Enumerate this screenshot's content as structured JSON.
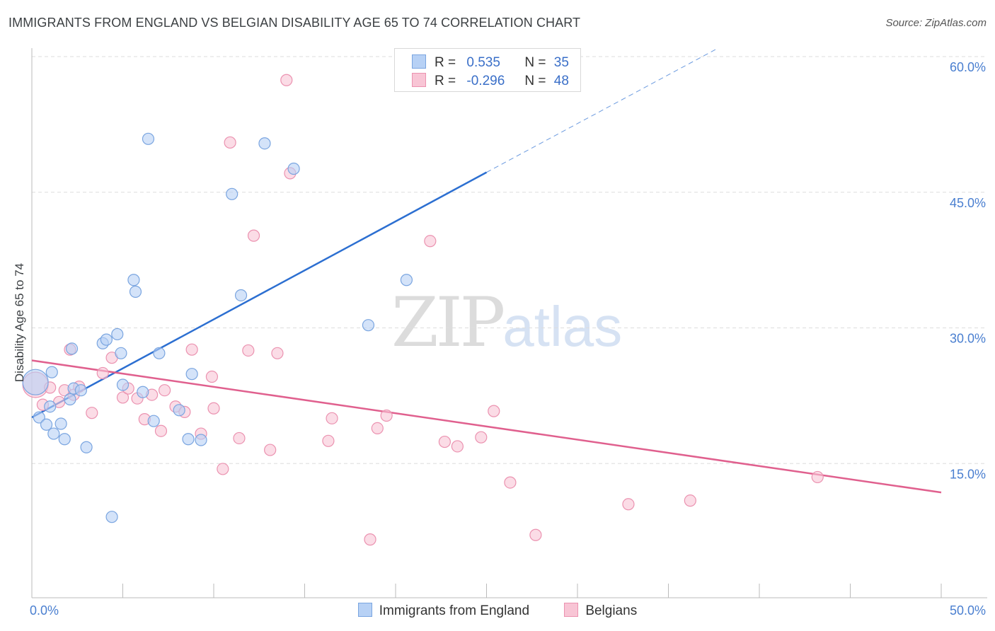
{
  "title": "IMMIGRANTS FROM ENGLAND VS BELGIAN DISABILITY AGE 65 TO 74 CORRELATION CHART",
  "source": "Source: ZipAtlas.com",
  "watermark": {
    "zip": "ZIP",
    "atlas": "atlas"
  },
  "legend_top": [
    {
      "r_label": "R =",
      "r_value": "0.535",
      "n_label": "N =",
      "n_value": "35"
    },
    {
      "r_label": "R =",
      "r_value": "-0.296",
      "n_label": "N =",
      "n_value": "48"
    }
  ],
  "legend_bottom": [
    "Immigrants from England",
    "Belgians"
  ],
  "colors": {
    "england_fill": "#b7d1f5",
    "england_stroke": "#7aa5e0",
    "england_line": "#2c6fd1",
    "belgian_fill": "#f8c5d5",
    "belgian_stroke": "#eb92b0",
    "belgian_line": "#e0608e",
    "grid": "#dddddd",
    "axis": "#bbbbbb",
    "tick_text": "#4a7fd0"
  },
  "chart_data": {
    "type": "scatter",
    "title": "IMMIGRANTS FROM ENGLAND VS BELGIAN DISABILITY AGE 65 TO 74 CORRELATION CHART",
    "xlabel": "",
    "ylabel": "Disability Age 65 to 74",
    "xlim": [
      0,
      50
    ],
    "ylim": [
      0,
      60
    ],
    "x_tick_labels": [
      "0.0%",
      "50.0%"
    ],
    "y_ticks": [
      15,
      30,
      45,
      60
    ],
    "y_tick_labels": [
      "15.0%",
      "30.0%",
      "45.0%",
      "60.0%"
    ],
    "grid": true,
    "legend": "top-center",
    "series": [
      {
        "name": "Immigrants from England",
        "R": 0.535,
        "N": 35,
        "trend": {
          "x": [
            0,
            25
          ],
          "y": [
            20.1,
            47.2
          ],
          "dashed_to": [
            37.7,
            60.9
          ]
        },
        "points": [
          [
            0.2,
            24.0
          ],
          [
            0.4,
            20.1
          ],
          [
            0.8,
            19.3
          ],
          [
            1.0,
            21.3
          ],
          [
            1.1,
            25.1
          ],
          [
            1.2,
            18.3
          ],
          [
            1.6,
            19.4
          ],
          [
            1.8,
            17.7
          ],
          [
            2.1,
            22.1
          ],
          [
            2.2,
            27.7
          ],
          [
            2.3,
            23.3
          ],
          [
            2.7,
            23.1
          ],
          [
            3.0,
            16.8
          ],
          [
            3.9,
            28.3
          ],
          [
            4.1,
            28.7
          ],
          [
            4.7,
            29.3
          ],
          [
            4.9,
            27.2
          ],
          [
            5.0,
            23.7
          ],
          [
            5.6,
            35.3
          ],
          [
            5.7,
            34.0
          ],
          [
            6.1,
            22.9
          ],
          [
            6.4,
            50.9
          ],
          [
            6.7,
            19.7
          ],
          [
            7.0,
            27.2
          ],
          [
            8.1,
            20.9
          ],
          [
            8.6,
            17.7
          ],
          [
            8.8,
            24.9
          ],
          [
            9.3,
            17.6
          ],
          [
            11.0,
            44.8
          ],
          [
            11.5,
            33.6
          ],
          [
            12.8,
            50.4
          ],
          [
            14.4,
            47.6
          ],
          [
            18.5,
            30.3
          ],
          [
            20.6,
            35.3
          ],
          [
            4.4,
            9.1
          ]
        ]
      },
      {
        "name": "Belgians",
        "R": -0.296,
        "N": 48,
        "trend": {
          "x": [
            0,
            50
          ],
          "y": [
            26.4,
            11.8
          ]
        },
        "points": [
          [
            0.2,
            23.7
          ],
          [
            0.6,
            21.5
          ],
          [
            1.0,
            23.4
          ],
          [
            1.5,
            21.8
          ],
          [
            1.8,
            23.1
          ],
          [
            2.1,
            27.6
          ],
          [
            2.3,
            22.6
          ],
          [
            2.6,
            23.5
          ],
          [
            3.3,
            20.6
          ],
          [
            3.9,
            25.0
          ],
          [
            4.4,
            26.7
          ],
          [
            5.0,
            22.3
          ],
          [
            5.3,
            23.3
          ],
          [
            5.8,
            22.2
          ],
          [
            6.2,
            19.9
          ],
          [
            6.6,
            22.6
          ],
          [
            7.1,
            18.6
          ],
          [
            7.3,
            23.1
          ],
          [
            7.9,
            21.3
          ],
          [
            8.4,
            20.7
          ],
          [
            8.8,
            27.6
          ],
          [
            9.3,
            18.3
          ],
          [
            9.9,
            24.6
          ],
          [
            10.0,
            21.1
          ],
          [
            10.5,
            14.4
          ],
          [
            10.9,
            50.5
          ],
          [
            11.4,
            17.8
          ],
          [
            11.9,
            27.5
          ],
          [
            12.2,
            40.2
          ],
          [
            13.1,
            16.5
          ],
          [
            13.5,
            27.2
          ],
          [
            14.2,
            47.1
          ],
          [
            14.0,
            57.4
          ],
          [
            16.3,
            17.5
          ],
          [
            16.5,
            20.0
          ],
          [
            18.6,
            6.6
          ],
          [
            19.0,
            18.9
          ],
          [
            19.5,
            20.3
          ],
          [
            21.9,
            39.6
          ],
          [
            22.7,
            17.4
          ],
          [
            23.4,
            16.9
          ],
          [
            24.7,
            17.9
          ],
          [
            25.4,
            20.8
          ],
          [
            26.3,
            12.9
          ],
          [
            27.7,
            7.1
          ],
          [
            32.8,
            10.5
          ],
          [
            36.2,
            10.9
          ],
          [
            43.2,
            13.5
          ]
        ]
      }
    ]
  }
}
